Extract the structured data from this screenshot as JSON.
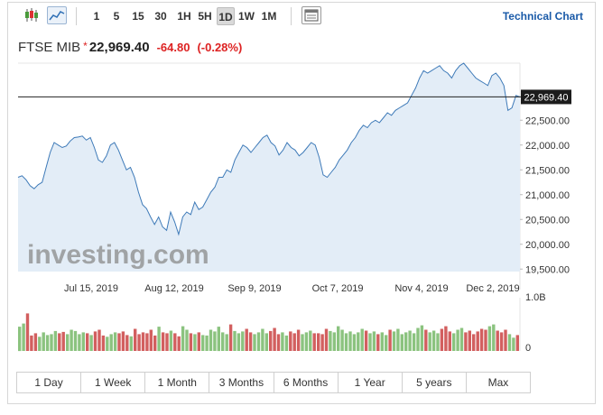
{
  "toolbar": {
    "chart_types": [
      "candlestick-icon",
      "area-chart-icon"
    ],
    "intervals": [
      "1",
      "5",
      "15",
      "30",
      "1H",
      "5H",
      "1D",
      "1W",
      "1M"
    ],
    "active_interval": "1D",
    "settings_icon": "table-icon",
    "technical_chart_label": "Technical Chart"
  },
  "quote": {
    "name": "FTSE MIB",
    "star": "*",
    "last": "22,969.40",
    "change": "-64.80",
    "change_pct": "(-0.28%)"
  },
  "colors": {
    "area_fill": "#e3edf7",
    "line": "#3e7ab8",
    "volume_up": "#8bc37f",
    "volume_down": "#d25f5f",
    "negative": "#dd2222",
    "link": "#1a5aa8"
  },
  "watermark": "investing.com",
  "ranges": [
    "1 Day",
    "1 Week",
    "1 Month",
    "3 Months",
    "6 Months",
    "1 Year",
    "5 years",
    "Max"
  ],
  "chart_data": {
    "type": "area",
    "y_ticks": [
      "19,500.00",
      "20,000.00",
      "20,500.00",
      "21,000.00",
      "21,500.00",
      "22,000.00",
      "22,500.00"
    ],
    "ylim": [
      19450,
      23650
    ],
    "x_ticks": [
      "Jul 15, 2019",
      "Aug 12, 2019",
      "Sep 9, 2019",
      "Oct 7, 2019",
      "Nov 4, 2019",
      "Dec 2, 2019"
    ],
    "last_label": "22,969.40",
    "last_value": 22969.4,
    "values": [
      21350,
      21380,
      21300,
      21180,
      21120,
      21200,
      21250,
      21550,
      21850,
      22050,
      22000,
      21950,
      21980,
      22080,
      22150,
      22160,
      22180,
      22100,
      22150,
      21950,
      21700,
      21650,
      21780,
      22000,
      22050,
      21900,
      21700,
      21500,
      21550,
      21350,
      21050,
      20800,
      20720,
      20550,
      20400,
      20550,
      20350,
      20280,
      20650,
      20450,
      20200,
      20550,
      20650,
      20600,
      20850,
      20700,
      20750,
      20900,
      21050,
      21150,
      21350,
      21350,
      21500,
      21450,
      21700,
      21850,
      22000,
      21950,
      21850,
      21950,
      22050,
      22150,
      22200,
      22050,
      21980,
      21800,
      21900,
      22050,
      21950,
      21900,
      21780,
      21850,
      21950,
      22050,
      22000,
      21750,
      21400,
      21350,
      21450,
      21550,
      21700,
      21800,
      21900,
      22050,
      22150,
      22300,
      22400,
      22350,
      22450,
      22500,
      22450,
      22550,
      22650,
      22600,
      22700,
      22750,
      22800,
      22850,
      23000,
      23150,
      23350,
      23500,
      23450,
      23500,
      23550,
      23600,
      23500,
      23450,
      23350,
      23500,
      23600,
      23650,
      23550,
      23450,
      23350,
      23300,
      23250,
      23200,
      23400,
      23450,
      23350,
      23200,
      22700,
      22750,
      23000,
      22969
    ],
    "volume_label_top": "1.0B",
    "volume_label_bottom": "0",
    "volume": [
      0.55,
      0.62,
      0.85,
      0.35,
      0.4,
      0.32,
      0.42,
      0.36,
      0.38,
      0.45,
      0.4,
      0.43,
      0.38,
      0.48,
      0.45,
      0.38,
      0.42,
      0.4,
      0.36,
      0.44,
      0.48,
      0.35,
      0.32,
      0.38,
      0.42,
      0.4,
      0.44,
      0.36,
      0.33,
      0.5,
      0.38,
      0.42,
      0.4,
      0.48,
      0.35,
      0.55,
      0.42,
      0.4,
      0.46,
      0.4,
      0.33,
      0.56,
      0.48,
      0.4,
      0.38,
      0.42,
      0.36,
      0.35,
      0.48,
      0.44,
      0.55,
      0.42,
      0.38,
      0.6,
      0.45,
      0.4,
      0.44,
      0.5,
      0.42,
      0.38,
      0.42,
      0.5,
      0.4,
      0.45,
      0.52,
      0.38,
      0.42,
      0.35,
      0.44,
      0.4,
      0.48,
      0.38,
      0.42,
      0.46,
      0.4,
      0.4,
      0.38,
      0.5,
      0.45,
      0.42,
      0.56,
      0.48,
      0.4,
      0.44,
      0.38,
      0.42,
      0.5,
      0.46,
      0.4,
      0.44,
      0.38,
      0.42,
      0.36,
      0.48,
      0.44,
      0.5,
      0.38,
      0.42,
      0.46,
      0.4,
      0.52,
      0.58,
      0.48,
      0.42,
      0.46,
      0.4,
      0.5,
      0.56,
      0.44,
      0.4,
      0.48,
      0.52,
      0.42,
      0.46,
      0.38,
      0.44,
      0.5,
      0.48,
      0.56,
      0.6,
      0.46,
      0.42,
      0.48,
      0.38,
      0.3,
      0.36
    ]
  }
}
